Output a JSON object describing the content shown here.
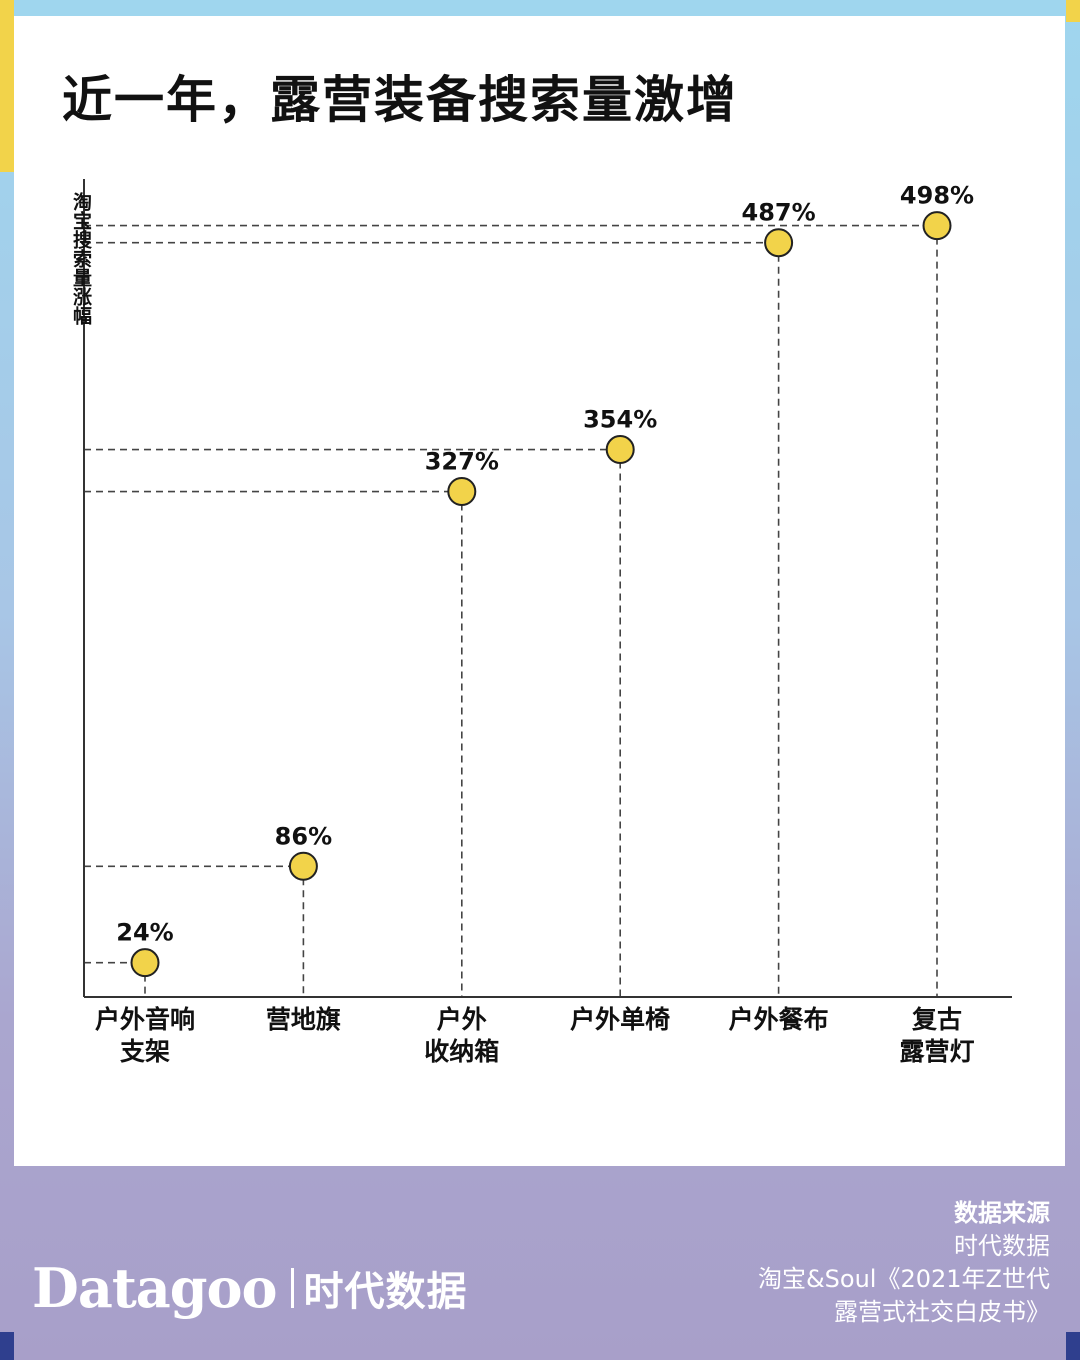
{
  "title": "近一年，露营装备搜索量激增",
  "chart_data": {
    "type": "scatter",
    "title": "近一年，露营装备搜索量激增",
    "ylabel": "淘宝搜索量涨幅",
    "xlabel": "",
    "ylim": [
      0,
      520
    ],
    "grid": false,
    "categories": [
      "户外音响\n支架",
      "营地旗",
      "户外\n收纳箱",
      "户外单椅",
      "户外餐布",
      "复古\n露营灯"
    ],
    "values": [
      24,
      86,
      327,
      354,
      487,
      498
    ],
    "value_labels": [
      "24%",
      "86%",
      "327%",
      "354%",
      "487%",
      "498%"
    ],
    "marker_color": "#f2d34a"
  },
  "footer": {
    "brand_latin": "Datagoo",
    "brand_cn": "时代数据",
    "source_heading": "数据来源",
    "source_lines": [
      "时代数据",
      "淘宝&Soul《2021年Z世代",
      "露营式社交白皮书》"
    ]
  }
}
